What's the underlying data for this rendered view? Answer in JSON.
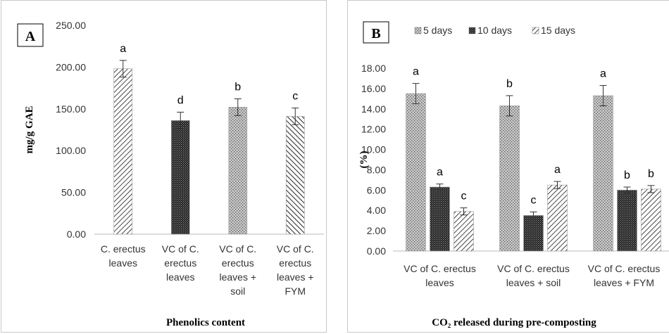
{
  "chart_data": [
    {
      "type": "bar",
      "panel_label": "A",
      "xlabel": "Phenolics content",
      "ylabel": "mg/g GAE",
      "ylim": [
        0,
        250
      ],
      "y_ticks": [
        "0.00",
        "50.00",
        "100.00",
        "150.00",
        "200.00",
        "250.00"
      ],
      "categories": [
        [
          "C. erectus",
          "leaves"
        ],
        [
          "VC of C.",
          "erectus",
          "leaves"
        ],
        [
          "VC of C.",
          "erectus",
          "leaves +",
          "soil"
        ],
        [
          "VC of C.",
          "erectus",
          "leaves +",
          "FYM"
        ]
      ],
      "values": [
        198,
        136,
        152,
        141
      ],
      "errors": [
        10,
        10,
        10,
        10
      ],
      "significance": [
        "a",
        "d",
        "b",
        "c"
      ],
      "grid": false
    },
    {
      "type": "bar",
      "panel_label": "B",
      "xlabel": "CO₂ released during pre-composting",
      "ylabel": "(%)",
      "ylim": [
        0,
        18
      ],
      "y_ticks": [
        "0.00",
        "2.00",
        "4.00",
        "6.00",
        "8.00",
        "10.00",
        "12.00",
        "14.00",
        "16.00",
        "18.00"
      ],
      "legend_position": "top",
      "categories": [
        [
          "VC of C. erectus",
          "leaves"
        ],
        [
          "VC of C. erectus",
          "leaves + soil"
        ],
        [
          "VC of C. erectus",
          "leaves + FYM"
        ]
      ],
      "series": [
        {
          "name": "5 days",
          "values": [
            15.5,
            14.3,
            15.3
          ],
          "errors": [
            1.0,
            1.0,
            1.0
          ],
          "significance": [
            "a",
            "b",
            "a"
          ]
        },
        {
          "name": "10 days",
          "values": [
            6.3,
            3.5,
            6.0
          ],
          "errors": [
            0.3,
            0.35,
            0.3
          ],
          "significance": [
            "a",
            "c",
            "b"
          ]
        },
        {
          "name": "15 days",
          "values": [
            3.9,
            6.5,
            6.1
          ],
          "errors": [
            0.35,
            0.35,
            0.35
          ],
          "significance": [
            "c",
            "a",
            "b"
          ]
        }
      ],
      "grid": false
    }
  ]
}
